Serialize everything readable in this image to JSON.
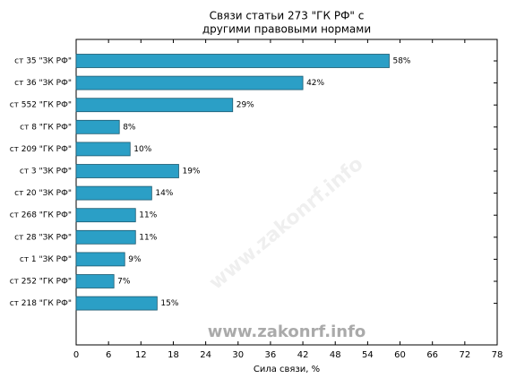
{
  "chart_data": {
    "type": "barh",
    "title": [
      "Связи статьи 273 \"ГК РФ\" с",
      "другими правовыми нормами"
    ],
    "xlabel": "Сила связи, %",
    "watermark": "www.zakonrf.info",
    "categories": [
      "ст 35 \"ЗК РФ\"",
      "ст 36 \"ЗК РФ\"",
      "ст 552 \"ГК РФ\"",
      "ст 8 \"ГК РФ\"",
      "ст 209 \"ГК РФ\"",
      "ст 3 \"ЗК РФ\"",
      "ст 20 \"ЗК РФ\"",
      "ст 268 \"ГК РФ\"",
      "ст 28 \"ЗК РФ\"",
      "ст 1 \"ЗК РФ\"",
      "ст 252 \"ГК РФ\"",
      "ст 218 \"ГК РФ\""
    ],
    "values": [
      58,
      42,
      29,
      8,
      10,
      19,
      14,
      11,
      11,
      9,
      7,
      15
    ],
    "value_labels": [
      "58%",
      "42%",
      "29%",
      "8%",
      "10%",
      "19%",
      "14%",
      "11%",
      "11%",
      "9%",
      "7%",
      "15%"
    ],
    "color": "#2b9fc6",
    "xlim": [
      0,
      78
    ],
    "xticks": [
      0,
      6,
      12,
      18,
      24,
      30,
      36,
      42,
      48,
      54,
      60,
      66,
      72,
      78
    ]
  }
}
